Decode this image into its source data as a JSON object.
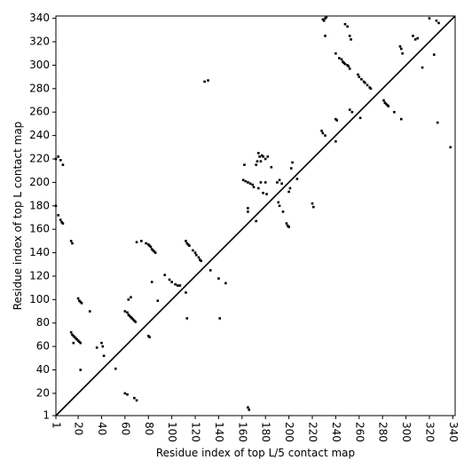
{
  "chart_data": {
    "type": "scatter",
    "xlabel": "Residue index of top L/5 contact map",
    "ylabel": "Residue index of top L contact map",
    "xlim": [
      1,
      342
    ],
    "ylim": [
      1,
      342
    ],
    "xticks": [
      1,
      20,
      40,
      60,
      80,
      100,
      120,
      140,
      160,
      180,
      200,
      220,
      240,
      260,
      280,
      300,
      320,
      340
    ],
    "yticks": [
      1,
      20,
      40,
      60,
      80,
      100,
      120,
      140,
      160,
      180,
      200,
      220,
      240,
      260,
      280,
      300,
      320,
      340
    ],
    "diagonal": true,
    "grid": false,
    "color": "#000000",
    "x": [
      1,
      3,
      5,
      7,
      1,
      3,
      5,
      6,
      7,
      14,
      15,
      20,
      21,
      22,
      23,
      14,
      15,
      16,
      17,
      18,
      19,
      20,
      21,
      22,
      30,
      40,
      41,
      36,
      42,
      60,
      62,
      63,
      64,
      65,
      66,
      67,
      68,
      69,
      63,
      65,
      70,
      74,
      78,
      80,
      81,
      82,
      83,
      84,
      85,
      86,
      83,
      80,
      81,
      88,
      94,
      98,
      100,
      103,
      105,
      107,
      112,
      113,
      114,
      115,
      118,
      120,
      121,
      123,
      124,
      125,
      128,
      131,
      112,
      113,
      141,
      146,
      162,
      161,
      163,
      165,
      167,
      169,
      165,
      165,
      170,
      172,
      173,
      174,
      175,
      176,
      177,
      178,
      180,
      182,
      176,
      174,
      178,
      181,
      180,
      172,
      190,
      192,
      194,
      185,
      191,
      192,
      195,
      198,
      199,
      200,
      200,
      201,
      202,
      203,
      207,
      220,
      221,
      229,
      230,
      231,
      232,
      231,
      228,
      229,
      231,
      240,
      241,
      240,
      240,
      243,
      245,
      246,
      247,
      248,
      250,
      251,
      252,
      248,
      250,
      252,
      253,
      252,
      254,
      259,
      260,
      262,
      264,
      265,
      267,
      269,
      270,
      261,
      281,
      282,
      283,
      284,
      285,
      290,
      295,
      296,
      297,
      296,
      306,
      308,
      310,
      314,
      320,
      324,
      326,
      328,
      327,
      338,
      60,
      62,
      68,
      70,
      165,
      166,
      52,
      140,
      133,
      22,
      16
    ],
    "y": [
      220,
      222,
      219,
      215,
      180,
      172,
      168,
      166,
      165,
      150,
      148,
      101,
      99,
      98,
      97,
      72,
      70,
      69,
      68,
      67,
      66,
      65,
      64,
      63,
      90,
      63,
      60,
      59,
      52,
      90,
      89,
      87,
      86,
      85,
      84,
      83,
      82,
      81,
      100,
      102,
      149,
      150,
      148,
      147,
      146,
      145,
      143,
      142,
      141,
      140,
      115,
      69,
      68,
      99,
      121,
      117,
      115,
      113,
      112,
      112,
      150,
      148,
      147,
      146,
      142,
      140,
      138,
      136,
      134,
      133,
      286,
      287,
      106,
      84,
      84,
      114,
      215,
      202,
      201,
      200,
      199,
      198,
      178,
      175,
      196,
      215,
      218,
      225,
      222,
      218,
      223,
      222,
      220,
      222,
      200,
      195,
      191,
      190,
      200,
      167,
      200,
      202,
      199,
      213,
      183,
      180,
      175,
      165,
      163,
      162,
      192,
      195,
      212,
      217,
      203,
      182,
      179,
      339,
      338,
      340,
      341,
      325,
      244,
      242,
      240,
      254,
      253,
      235,
      310,
      306,
      305,
      303,
      302,
      301,
      300,
      299,
      297,
      335,
      333,
      325,
      322,
      262,
      260,
      292,
      290,
      288,
      286,
      285,
      283,
      281,
      280,
      255,
      270,
      268,
      267,
      266,
      265,
      260,
      316,
      314,
      310,
      254,
      325,
      322,
      323,
      298,
      340,
      309,
      338,
      336,
      251,
      230,
      20,
      19,
      16,
      14,
      8,
      6,
      41,
      118,
      125,
      40,
      63
    ]
  }
}
